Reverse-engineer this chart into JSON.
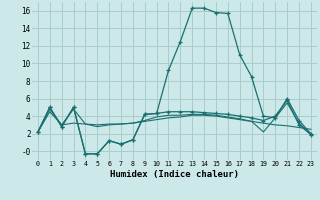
{
  "xlabel": "Humidex (Indice chaleur)",
  "bg_color": "#cce8e8",
  "grid_color": "#aacccc",
  "line_color": "#1a7070",
  "line1_x": [
    0,
    1,
    2,
    3,
    4,
    5,
    6,
    7,
    8,
    9,
    10,
    11,
    12,
    13,
    14,
    15,
    16,
    17,
    18,
    19,
    20,
    21,
    22,
    23
  ],
  "line1_y": [
    2.2,
    5.0,
    2.8,
    5.0,
    -0.3,
    -0.3,
    1.2,
    0.8,
    1.3,
    4.2,
    4.3,
    9.2,
    12.5,
    16.3,
    16.3,
    15.8,
    15.7,
    11.0,
    8.5,
    4.0,
    3.8,
    6.0,
    3.5,
    2.0
  ],
  "line2_x": [
    0,
    1,
    2,
    3,
    4,
    5,
    6,
    7,
    8,
    9,
    10,
    11,
    12,
    13,
    14,
    15,
    16,
    17,
    18,
    19,
    20,
    21,
    22,
    23
  ],
  "line2_y": [
    2.2,
    5.0,
    2.8,
    5.0,
    -0.3,
    -0.3,
    1.2,
    0.8,
    1.3,
    4.2,
    4.3,
    4.5,
    4.5,
    4.5,
    4.4,
    4.3,
    4.2,
    4.0,
    3.8,
    3.5,
    4.0,
    5.8,
    3.0,
    1.9
  ],
  "line3_x": [
    0,
    1,
    2,
    3,
    4,
    5,
    6,
    7,
    8,
    9,
    10,
    11,
    12,
    13,
    14,
    15,
    16,
    17,
    18,
    19,
    20,
    21,
    22,
    23
  ],
  "line3_y": [
    2.2,
    4.8,
    3.0,
    3.2,
    3.1,
    3.0,
    3.1,
    3.1,
    3.2,
    3.4,
    3.6,
    3.8,
    3.9,
    4.1,
    4.1,
    4.0,
    3.8,
    3.6,
    3.4,
    3.2,
    3.0,
    2.9,
    2.7,
    2.5
  ],
  "line4_x": [
    0,
    1,
    2,
    3,
    4,
    5,
    6,
    7,
    8,
    9,
    10,
    11,
    12,
    13,
    14,
    15,
    16,
    17,
    18,
    19,
    20,
    21,
    22,
    23
  ],
  "line4_y": [
    2.2,
    4.5,
    3.0,
    4.8,
    3.1,
    2.8,
    3.0,
    3.1,
    3.2,
    3.5,
    3.9,
    4.1,
    4.1,
    4.2,
    4.2,
    4.1,
    3.9,
    3.7,
    3.4,
    2.2,
    3.8,
    5.5,
    3.2,
    1.9
  ],
  "ylim": [
    -1.0,
    17.0
  ],
  "xlim_min": -0.5,
  "xlim_max": 23.5,
  "yticks": [
    0,
    2,
    4,
    6,
    8,
    10,
    12,
    14,
    16
  ],
  "ytick_labels": [
    "-0",
    "2",
    "4",
    "6",
    "8",
    "10",
    "12",
    "14",
    "16"
  ],
  "xticks": [
    0,
    1,
    2,
    3,
    4,
    5,
    6,
    7,
    8,
    9,
    10,
    11,
    12,
    13,
    14,
    15,
    16,
    17,
    18,
    19,
    20,
    21,
    22,
    23
  ],
  "xtick_labels": [
    "0",
    "1",
    "2",
    "3",
    "4",
    "5",
    "6",
    "7",
    "8",
    "9",
    "10",
    "11",
    "12",
    "13",
    "14",
    "15",
    "16",
    "17",
    "18",
    "19",
    "20",
    "21",
    "22",
    "23"
  ]
}
